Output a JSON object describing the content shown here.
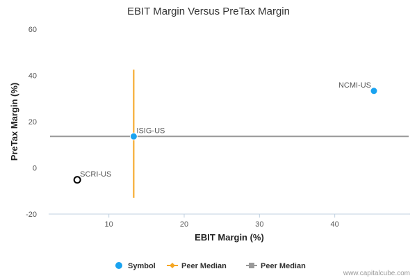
{
  "chart_data": {
    "type": "scatter",
    "title": "EBIT Margin Versus PreTax Margin",
    "xlabel": "EBIT Margin (%)",
    "ylabel": "PreTax Margin (%)",
    "xlim": [
      2,
      50
    ],
    "ylim": [
      -20,
      60
    ],
    "xticks": [
      10,
      20,
      30,
      40
    ],
    "yticks": [
      -20,
      0,
      20,
      40,
      60
    ],
    "grid": false,
    "legend_position": "bottom",
    "points": [
      {
        "label": "NCMI-US",
        "x": 45.2,
        "y": 33.3,
        "style": "filled",
        "color": "#1aa3f0"
      },
      {
        "label": "ISIG-US",
        "x": 13.3,
        "y": 13.6,
        "style": "filled",
        "color": "#1aa3f0"
      },
      {
        "label": "SCRI-US",
        "x": 5.8,
        "y": -5.2,
        "style": "hollow",
        "color": "#000000"
      }
    ],
    "peer_median_x": {
      "value": 13.3,
      "range": [
        -13,
        42.5
      ],
      "color": "#f5a623"
    },
    "peer_median_y": {
      "value": 13.6,
      "color": "#999999"
    },
    "legend": [
      {
        "name": "Symbol",
        "marker": "circle",
        "color": "#1aa3f0"
      },
      {
        "name": "Peer Median",
        "marker": "diamond-line",
        "color": "#f5a623"
      },
      {
        "name": "Peer Median",
        "marker": "square-line",
        "color": "#999999"
      }
    ]
  },
  "credit": "www.capitalcube.com"
}
